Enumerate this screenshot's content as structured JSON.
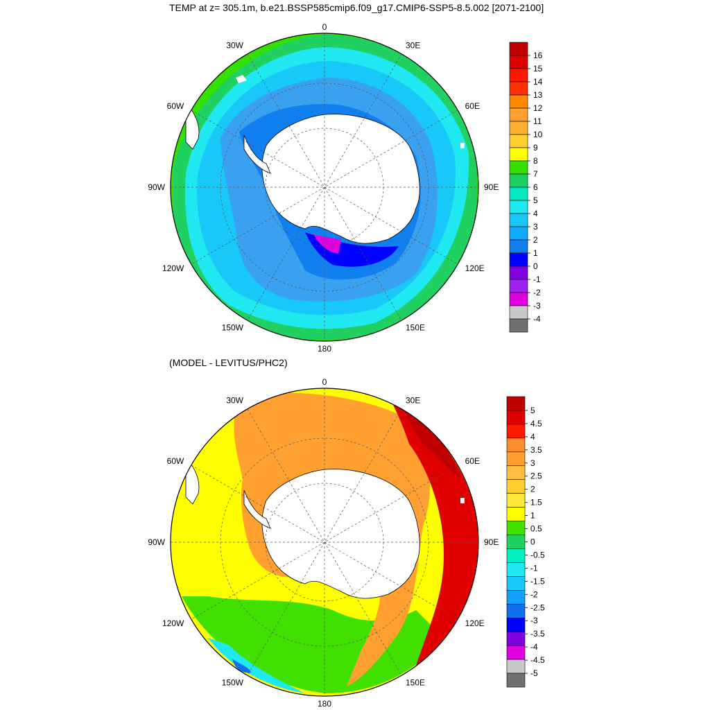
{
  "title": "TEMP at z= 305.1m, b.e21.BSSP585cmip6.f09_g17.CMIP6-SSP5-8.5.002 [2071-2100]",
  "subtitle": "(MODEL - LEVITUS/PHC2)",
  "longitude_labels": [
    "0",
    "30E",
    "60E",
    "90E",
    "120E",
    "150E",
    "180",
    "150W",
    "120W",
    "90W",
    "60W",
    "30W"
  ],
  "colorbar_top": {
    "labels": [
      "16",
      "15",
      "14",
      "13",
      "12",
      "11",
      "10",
      "9",
      "8",
      "7",
      "6",
      "5",
      "4",
      "3",
      "2",
      "1",
      "0",
      "-1",
      "-2",
      "-3",
      "-4"
    ],
    "colors": [
      "#c00000",
      "#e00000",
      "#ff1800",
      "#ff3000",
      "#ff8800",
      "#ffa030",
      "#ffb030",
      "#ffd030",
      "#ffff00",
      "#33e000",
      "#20d060",
      "#00e8c0",
      "#20e8f0",
      "#18c8f8",
      "#10a8f8",
      "#1080f0",
      "#0000ff",
      "#8000e0",
      "#a020f0",
      "#e000e0",
      "#c8c8c8",
      "#707070"
    ]
  },
  "colorbar_bottom": {
    "labels": [
      "5",
      "4.5",
      "4",
      "3.5",
      "3",
      "2.5",
      "2",
      "1.5",
      "1",
      "0.5",
      "0",
      "-0.5",
      "-1",
      "-1.5",
      "-2",
      "-2.5",
      "-3",
      "-3.5",
      "-4",
      "-4.5",
      "-5"
    ],
    "colors": [
      "#c00000",
      "#e00000",
      "#ff1800",
      "#ff8c30",
      "#ffa030",
      "#ffbf40",
      "#ffd030",
      "#ffe83a",
      "#ffff00",
      "#40e000",
      "#20d060",
      "#00f0c0",
      "#20e8f0",
      "#18c8f8",
      "#10a0f8",
      "#1070f0",
      "#0000ff",
      "#8000e0",
      "#e000e0",
      "#c8c8c8",
      "#707070"
    ]
  },
  "maps": [
    {
      "name": "top",
      "region": "Antarctic ocean, south polar stereographic",
      "field": "TEMP at 305.1m",
      "zone_colors": [
        "#4aa8f0",
        "#3aa0f0",
        "#18c8f8",
        "#20e8f0",
        "#20d060",
        "#33e000"
      ]
    },
    {
      "name": "bottom",
      "region": "Antarctic ocean, south polar stereographic",
      "field": "MODEL - LEVITUS/PHC2 difference",
      "zone_colors": [
        "#ffa030",
        "#ffd030",
        "#ffff00",
        "#40e000",
        "#20e8f0",
        "#e00000"
      ]
    }
  ]
}
